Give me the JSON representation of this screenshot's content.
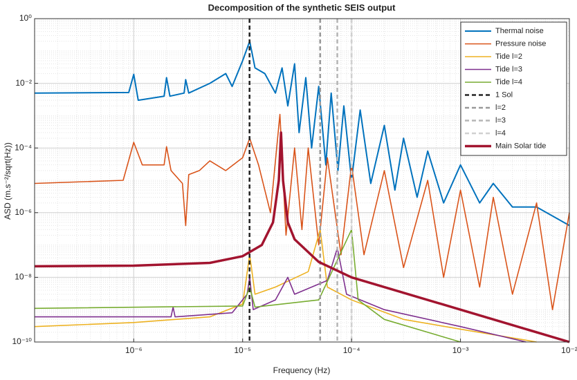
{
  "chart_data": {
    "type": "line",
    "title": "Decomposition of the synthetic SEIS output",
    "xlabel": "Frequency (Hz)",
    "ylabel": "ASD (m.s⁻²/sqrt(Hz))",
    "xscale": "log",
    "yscale": "log",
    "grid": true,
    "minor_grid": true,
    "legend": "upper right",
    "xlim": [
      1.23e-07,
      0.01
    ],
    "ylim": [
      1e-10,
      1
    ],
    "xticks": [
      {
        "value": 1e-06,
        "label": "10⁻⁶"
      },
      {
        "value": 1e-05,
        "label": "10⁻⁵"
      },
      {
        "value": 0.0001,
        "label": "10⁻⁴"
      },
      {
        "value": 0.001,
        "label": "10⁻³"
      },
      {
        "value": 0.01,
        "label": "10⁻²"
      }
    ],
    "yticks": [
      {
        "value": 1e-10,
        "label": "10⁻¹⁰"
      },
      {
        "value": 1e-08,
        "label": "10⁻⁸"
      },
      {
        "value": 1e-06,
        "label": "10⁻⁶"
      },
      {
        "value": 0.0001,
        "label": "10⁻⁴"
      },
      {
        "value": 0.01,
        "label": "10⁻²"
      },
      {
        "value": 1,
        "label": "10⁰"
      }
    ],
    "series": [
      {
        "name": "Thermal noise",
        "color": "#0072bd",
        "x": [
          1.23e-07,
          9e-07,
          1e-06,
          1.1e-06,
          1.9e-06,
          2e-06,
          2.15e-06,
          2.9e-06,
          3e-06,
          3.2e-06,
          5e-06,
          7e-06,
          8e-06,
          1e-05,
          1.16e-05,
          1.3e-05,
          1.6e-05,
          2e-05,
          2.3e-05,
          2.6e-05,
          3e-05,
          3.3e-05,
          3.8e-05,
          4.3e-05,
          5e-05,
          5.8e-05,
          6.5e-05,
          7.5e-05,
          8.5e-05,
          0.0001,
          0.00012,
          0.00015,
          0.0002,
          0.00025,
          0.0003,
          0.0004,
          0.0005,
          0.0007,
          0.001,
          0.0015,
          0.002,
          0.003,
          0.005,
          0.01
        ],
        "values": [
          0.005,
          0.0052,
          0.019,
          0.003,
          0.004,
          0.015,
          0.004,
          0.005,
          0.013,
          0.005,
          0.01,
          0.02,
          0.008,
          0.05,
          0.2,
          0.03,
          0.02,
          0.005,
          0.03,
          0.002,
          0.04,
          0.0003,
          0.015,
          0.0001,
          0.008,
          3e-05,
          0.005,
          2e-05,
          0.002,
          1e-05,
          0.0015,
          8e-06,
          0.0005,
          5e-06,
          0.0002,
          3e-06,
          8e-05,
          2e-06,
          3e-05,
          2e-06,
          8e-06,
          1.5e-06,
          1.5e-06,
          4e-07
        ]
      },
      {
        "name": "Pressure noise",
        "color": "#d95319",
        "x": [
          1.23e-07,
          8e-07,
          1e-06,
          1.2e-06,
          1.9e-06,
          2e-06,
          2.2e-06,
          2.8e-06,
          3e-06,
          3.2e-06,
          4e-06,
          5e-06,
          7e-06,
          1e-05,
          1.16e-05,
          1.4e-05,
          1.8e-05,
          2.2e-05,
          2.5e-05,
          3e-05,
          3.5e-05,
          4e-05,
          5e-05,
          6e-05,
          8e-05,
          0.0001,
          0.00013,
          0.0002,
          0.0003,
          0.0005,
          0.0007,
          0.001,
          0.0015,
          0.002,
          0.003,
          0.005,
          0.007,
          0.01
        ],
        "values": [
          8e-06,
          1e-05,
          0.00015,
          3e-05,
          3e-05,
          0.00011,
          2e-05,
          8e-06,
          4e-07,
          1.5e-05,
          2e-05,
          4e-05,
          2e-05,
          5e-05,
          0.0002,
          3e-05,
          1e-06,
          0.0011,
          2e-07,
          0.0001,
          3e-07,
          0.0001,
          1e-07,
          5e-05,
          5e-08,
          3e-05,
          5e-08,
          2e-05,
          2e-08,
          1e-05,
          1e-08,
          5e-06,
          5e-09,
          3e-06,
          3e-09,
          2e-06,
          1e-09,
          1e-06
        ]
      },
      {
        "name": "Tide l=2",
        "color": "#edb120",
        "x": [
          1.23e-07,
          1e-06,
          5e-06,
          1e-05,
          1.16e-05,
          1.3e-05,
          2e-05,
          4e-05,
          5.15e-05,
          6e-05,
          0.0001,
          0.0003,
          0.001,
          0.005
        ],
        "values": [
          3e-10,
          4e-10,
          6e-10,
          1.5e-09,
          5e-08,
          3e-09,
          5e-09,
          1.5e-08,
          3e-07,
          5e-09,
          2e-09,
          5e-10,
          2.5e-10,
          1e-10
        ]
      },
      {
        "name": "Tide l=3",
        "color": "#7e2f8e",
        "x": [
          1.23e-07,
          2.2e-06,
          2.3e-06,
          2.4e-06,
          8e-06,
          1.1e-05,
          1.16e-05,
          1.25e-05,
          2e-05,
          2.6e-05,
          3e-05,
          6e-05,
          7.4e-05,
          9e-05,
          0.0002,
          0.001,
          0.004
        ],
        "values": [
          6e-10,
          6e-10,
          1.2e-09,
          6e-10,
          8e-10,
          3e-09,
          1e-08,
          1e-09,
          2e-09,
          1e-08,
          3e-09,
          8e-09,
          8e-08,
          3e-09,
          1e-09,
          3e-10,
          1e-10
        ]
      },
      {
        "name": "Tide l=4",
        "color": "#77ac30",
        "x": [
          1.23e-07,
          1e-05,
          1.16e-05,
          1.3e-05,
          5e-05,
          0.0001,
          0.000115,
          0.0002,
          0.001
        ],
        "values": [
          1.1e-09,
          1.3e-09,
          5e-09,
          1.2e-09,
          2e-09,
          3e-07,
          2e-09,
          5e-10,
          1e-10
        ]
      },
      {
        "name": "1 Sol",
        "color": "#222222",
        "style": "dashed",
        "x": 1.157e-05
      },
      {
        "name": "l=2",
        "color": "#999999",
        "style": "dashed",
        "x": 5.15e-05
      },
      {
        "name": "l=3",
        "color": "#b5b5b5",
        "style": "dashed",
        "x": 7.4e-05
      },
      {
        "name": "l=4",
        "color": "#d0d0d0",
        "style": "dashed",
        "x": 0.0001
      },
      {
        "name": "Main Solar tide",
        "color": "#a2142f",
        "x": [
          1.23e-07,
          1e-06,
          5e-06,
          1e-05,
          1.5e-05,
          1.9e-05,
          2.15e-05,
          2.25e-05,
          2.35e-05,
          2.6e-05,
          3e-05,
          5e-05,
          0.0001,
          0.001,
          0.01
        ],
        "values": [
          2.2e-08,
          2.3e-08,
          2.8e-08,
          4.5e-08,
          1e-07,
          5e-07,
          1e-05,
          0.0003,
          1e-05,
          5e-07,
          1.5e-07,
          3e-08,
          1e-08,
          1e-09,
          1e-10
        ]
      }
    ]
  }
}
